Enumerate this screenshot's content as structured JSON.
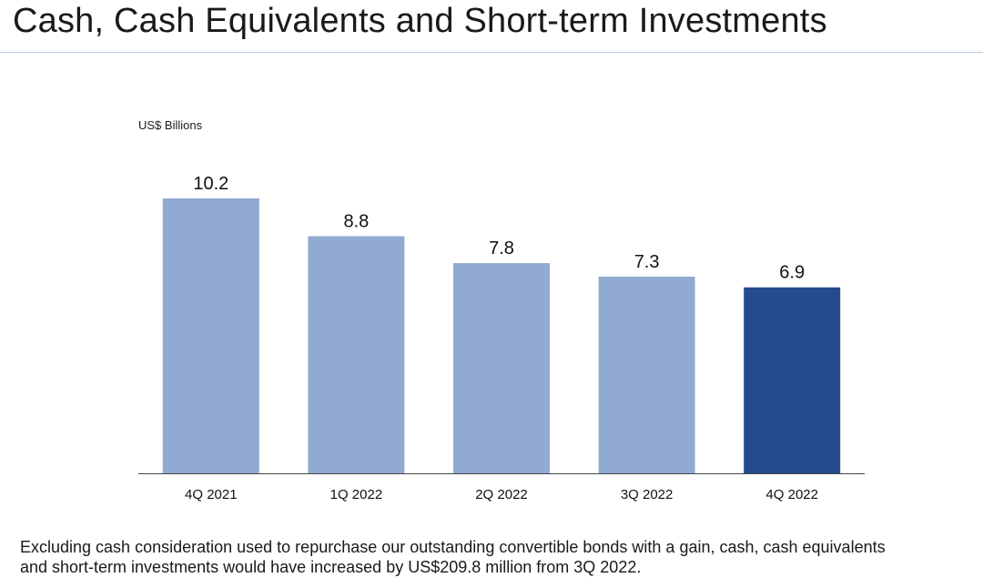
{
  "title": "Cash, Cash Equivalents and Short-term Investments",
  "colors": {
    "bar_default": "#90aad1",
    "bar_highlight": "#254b8c",
    "axis": "#444444",
    "title_rule": "#b9cce4"
  },
  "chart_data": {
    "type": "bar",
    "ylabel": "US$ Billions",
    "categories": [
      "4Q 2021",
      "1Q 2022",
      "2Q 2022",
      "3Q 2022",
      "4Q 2022"
    ],
    "values": [
      10.2,
      8.8,
      7.8,
      7.3,
      6.9
    ],
    "value_labels": [
      "10.2",
      "8.8",
      "7.8",
      "7.3",
      "6.9"
    ],
    "highlight_index": 4,
    "ylim": [
      0,
      10.2
    ],
    "grid": false,
    "legend": "none"
  },
  "footnote": {
    "line1": "Excluding cash consideration used to repurchase our outstanding convertible bonds with a gain, cash, cash equivalents",
    "line2": "and short-term investments would have increased by US$209.8 million from 3Q 2022."
  }
}
